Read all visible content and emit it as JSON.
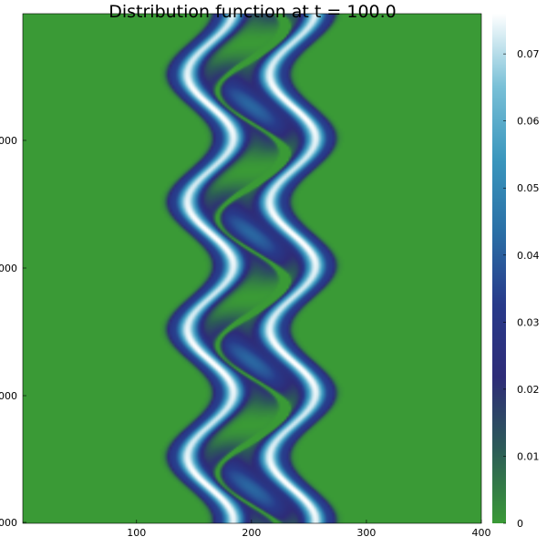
{
  "chart_data": {
    "type": "heatmap",
    "title": "Distribution function at t = 100.0",
    "xlabel": "",
    "ylabel": "",
    "x_ticks": [
      "100",
      "200",
      "300",
      "400"
    ],
    "x_tick_values": [
      100,
      200,
      300,
      400
    ],
    "xlim": [
      1,
      400
    ],
    "y_ticks": [
      "000",
      "000",
      "000",
      "000"
    ],
    "colorbar": {
      "ticks": [
        "0",
        "0.01",
        "0.02",
        "0.03",
        "0.04",
        "0.05",
        "0.06",
        "0.07"
      ],
      "tick_values": [
        0,
        0.01,
        0.02,
        0.03,
        0.04,
        0.05,
        0.06,
        0.07
      ],
      "range": [
        0,
        0.076
      ],
      "colors": [
        "#3a9a36",
        "#2c5c57",
        "#2e2c78",
        "#283a8a",
        "#2a6fa6",
        "#3a96bd",
        "#79c0d7",
        "#ffffff"
      ]
    },
    "features": {
      "background_value": 0,
      "band_center_x": 200,
      "band_half_width": 48,
      "vortex_count": 4,
      "grid": false
    }
  }
}
